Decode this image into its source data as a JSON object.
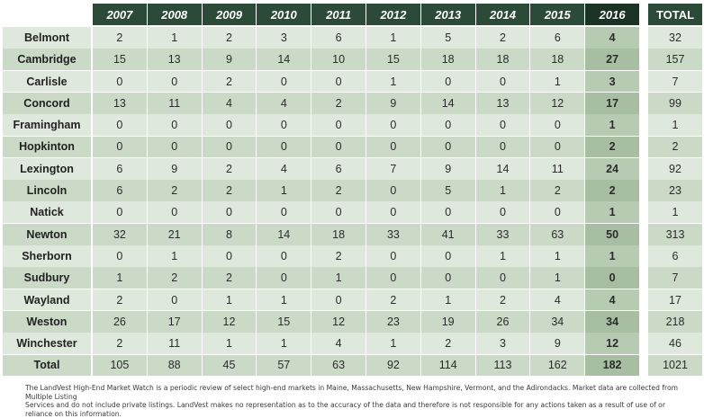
{
  "chart_data": {
    "type": "table",
    "columns": [
      "2007",
      "2008",
      "2009",
      "2010",
      "2011",
      "2012",
      "2013",
      "2014",
      "2015",
      "2016",
      "TOTAL"
    ],
    "highlight_column": "2016",
    "rows": [
      {
        "label": "Belmont",
        "values": [
          "2",
          "1",
          "2",
          "3",
          "6",
          "1",
          "5",
          "2",
          "6",
          "4",
          "32"
        ]
      },
      {
        "label": "Cambridge",
        "values": [
          "15",
          "13",
          "9",
          "14",
          "10",
          "15",
          "18",
          "18",
          "18",
          "27",
          "157"
        ]
      },
      {
        "label": "Carlisle",
        "values": [
          "0",
          "0",
          "2",
          "0",
          "0",
          "1",
          "0",
          "0",
          "1",
          "3",
          "7"
        ]
      },
      {
        "label": "Concord",
        "values": [
          "13",
          "11",
          "4",
          "4",
          "2",
          "9",
          "14",
          "13",
          "12",
          "17",
          "99"
        ]
      },
      {
        "label": "Framingham",
        "values": [
          "0",
          "0",
          "0",
          "0",
          "0",
          "0",
          "0",
          "0",
          "0",
          "1",
          "1"
        ]
      },
      {
        "label": "Hopkinton",
        "values": [
          "0",
          "0",
          "0",
          "0",
          "0",
          "0",
          "0",
          "0",
          "0",
          "2",
          "2"
        ]
      },
      {
        "label": "Lexington",
        "values": [
          "6",
          "9",
          "2",
          "4",
          "6",
          "7",
          "9",
          "14",
          "11",
          "24",
          "92"
        ]
      },
      {
        "label": "Lincoln",
        "values": [
          "6",
          "2",
          "2",
          "1",
          "2",
          "0",
          "5",
          "1",
          "2",
          "2",
          "23"
        ]
      },
      {
        "label": "Natick",
        "values": [
          "0",
          "0",
          "0",
          "0",
          "0",
          "0",
          "0",
          "0",
          "0",
          "1",
          "1"
        ]
      },
      {
        "label": "Newton",
        "values": [
          "32",
          "21",
          "8",
          "14",
          "18",
          "33",
          "41",
          "33",
          "63",
          "50",
          "313"
        ]
      },
      {
        "label": "Sherborn",
        "values": [
          "0",
          "1",
          "0",
          "0",
          "2",
          "0",
          "0",
          "1",
          "1",
          "1",
          "6"
        ]
      },
      {
        "label": "Sudbury",
        "values": [
          "1",
          "2",
          "2",
          "0",
          "1",
          "0",
          "0",
          "0",
          "1",
          "0",
          "7"
        ]
      },
      {
        "label": "Wayland",
        "values": [
          "2",
          "0",
          "1",
          "1",
          "0",
          "2",
          "1",
          "2",
          "4",
          "4",
          "17"
        ]
      },
      {
        "label": "Weston",
        "values": [
          "26",
          "17",
          "12",
          "15",
          "12",
          "23",
          "19",
          "26",
          "34",
          "34",
          "218"
        ]
      },
      {
        "label": "Winchester",
        "values": [
          "2",
          "11",
          "1",
          "1",
          "4",
          "1",
          "2",
          "3",
          "9",
          "12",
          "46"
        ]
      },
      {
        "label": "Total",
        "values": [
          "105",
          "88",
          "45",
          "57",
          "63",
          "92",
          "114",
          "113",
          "162",
          "182",
          "1021"
        ]
      }
    ]
  },
  "footer": {
    "line1": "The LandVest High-End Market Watch is a periodic review of select high-end markets in Maine, Massachusetts, New Hampshire, Vermont, and the Adirondacks. Market data are collected from Multiple Listing",
    "line2": "Services and do not include private listings. LandVest makes no representation as to the accuracy of the data and therefore is not responsible for any actions taken as a result of use of or reliance on this information."
  }
}
